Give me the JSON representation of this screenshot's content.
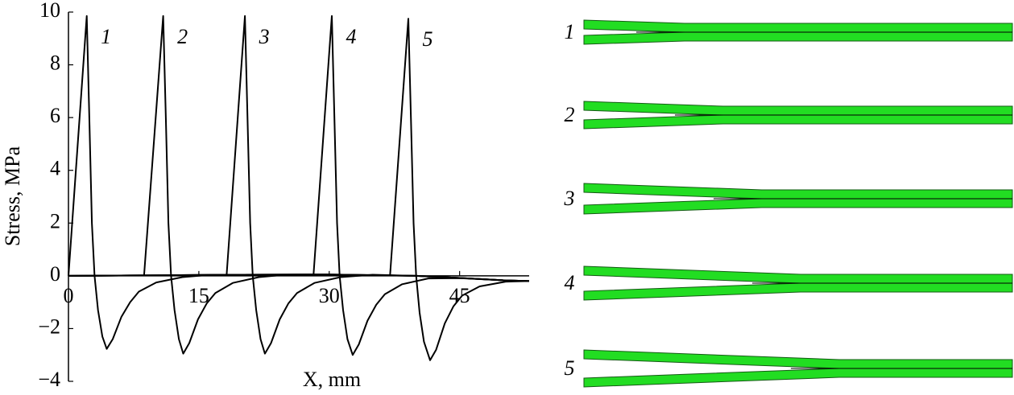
{
  "chart_data": {
    "type": "line",
    "y_label": "Stress, MPa",
    "x_label": "X, mm",
    "xlim": [
      0,
      53
    ],
    "ylim": [
      -4,
      10
    ],
    "xticks": [
      0,
      15,
      30,
      45
    ],
    "yticks": [
      {
        "value": -4,
        "label": "−4"
      },
      {
        "value": -2,
        "label": "−2"
      },
      0,
      2,
      4,
      6,
      8,
      10
    ],
    "series": [
      {
        "name": "1",
        "color": "#000000",
        "x": [
          0,
          2.1,
          2.4,
          2.7,
          3.0,
          3.4,
          3.9,
          4.4,
          5.1,
          6.1,
          7.1,
          8.1,
          10.1,
          13.1,
          16,
          20,
          30,
          40,
          45,
          50,
          53
        ],
        "values": [
          0,
          9.85,
          6,
          2,
          0,
          -1.3,
          -2.3,
          -2.77,
          -2.4,
          -1.55,
          -1.0,
          -0.6,
          -0.25,
          -0.05,
          0.03,
          0.04,
          0.05,
          0,
          -0.08,
          -0.17,
          -0.2
        ]
      },
      {
        "name": "2",
        "color": "#000000",
        "x": [
          0,
          8.7,
          10.9,
          11.2,
          11.5,
          11.8,
          12.2,
          12.7,
          13.2,
          13.9,
          14.9,
          15.9,
          16.9,
          18.9,
          21.9,
          25,
          30,
          40,
          45,
          50,
          53
        ],
        "values": [
          0,
          0.02,
          9.85,
          6,
          2,
          0,
          -1.3,
          -2.4,
          -2.95,
          -2.55,
          -1.65,
          -1.05,
          -0.65,
          -0.27,
          -0.05,
          0.04,
          0.05,
          0,
          -0.08,
          -0.17,
          -0.2
        ]
      },
      {
        "name": "3",
        "color": "#000000",
        "x": [
          0,
          10,
          18.2,
          20.3,
          20.6,
          20.9,
          21.2,
          21.6,
          22.1,
          22.6,
          23.3,
          24.3,
          25.3,
          26.3,
          28.3,
          31.3,
          35,
          40,
          45,
          50,
          53
        ],
        "values": [
          0,
          0.02,
          0.04,
          9.85,
          6,
          2,
          0,
          -1.3,
          -2.4,
          -2.95,
          -2.55,
          -1.65,
          -1.05,
          -0.65,
          -0.27,
          -0.05,
          0.04,
          0,
          -0.08,
          -0.17,
          -0.2
        ]
      },
      {
        "name": "4",
        "color": "#000000",
        "x": [
          0,
          10,
          20,
          28.2,
          30.3,
          30.6,
          30.9,
          31.2,
          31.6,
          32.1,
          32.7,
          33.4,
          34.4,
          35.4,
          36.4,
          38.4,
          41.4,
          45,
          50,
          53
        ],
        "values": [
          0,
          0.02,
          0.04,
          0.05,
          9.85,
          6,
          2,
          0,
          -1.3,
          -2.4,
          -3.0,
          -2.6,
          -1.7,
          -1.1,
          -0.7,
          -0.32,
          -0.1,
          -0.09,
          -0.17,
          -0.2
        ]
      },
      {
        "name": "5",
        "color": "#000000",
        "x": [
          0,
          10,
          20,
          30,
          37.0,
          39.1,
          39.4,
          39.7,
          40.0,
          40.4,
          40.9,
          41.6,
          42.3,
          43.3,
          44.3,
          45.3,
          47.3,
          50.3,
          53
        ],
        "values": [
          0,
          0.02,
          0.04,
          0.05,
          0.02,
          9.75,
          6,
          2,
          0,
          -1.4,
          -2.5,
          -3.2,
          -2.8,
          -1.8,
          -1.15,
          -0.75,
          -0.4,
          -0.22,
          -0.2
        ]
      }
    ]
  },
  "panels": [
    {
      "label": "1"
    },
    {
      "label": "2"
    },
    {
      "label": "3"
    },
    {
      "label": "4"
    },
    {
      "label": "5"
    }
  ]
}
